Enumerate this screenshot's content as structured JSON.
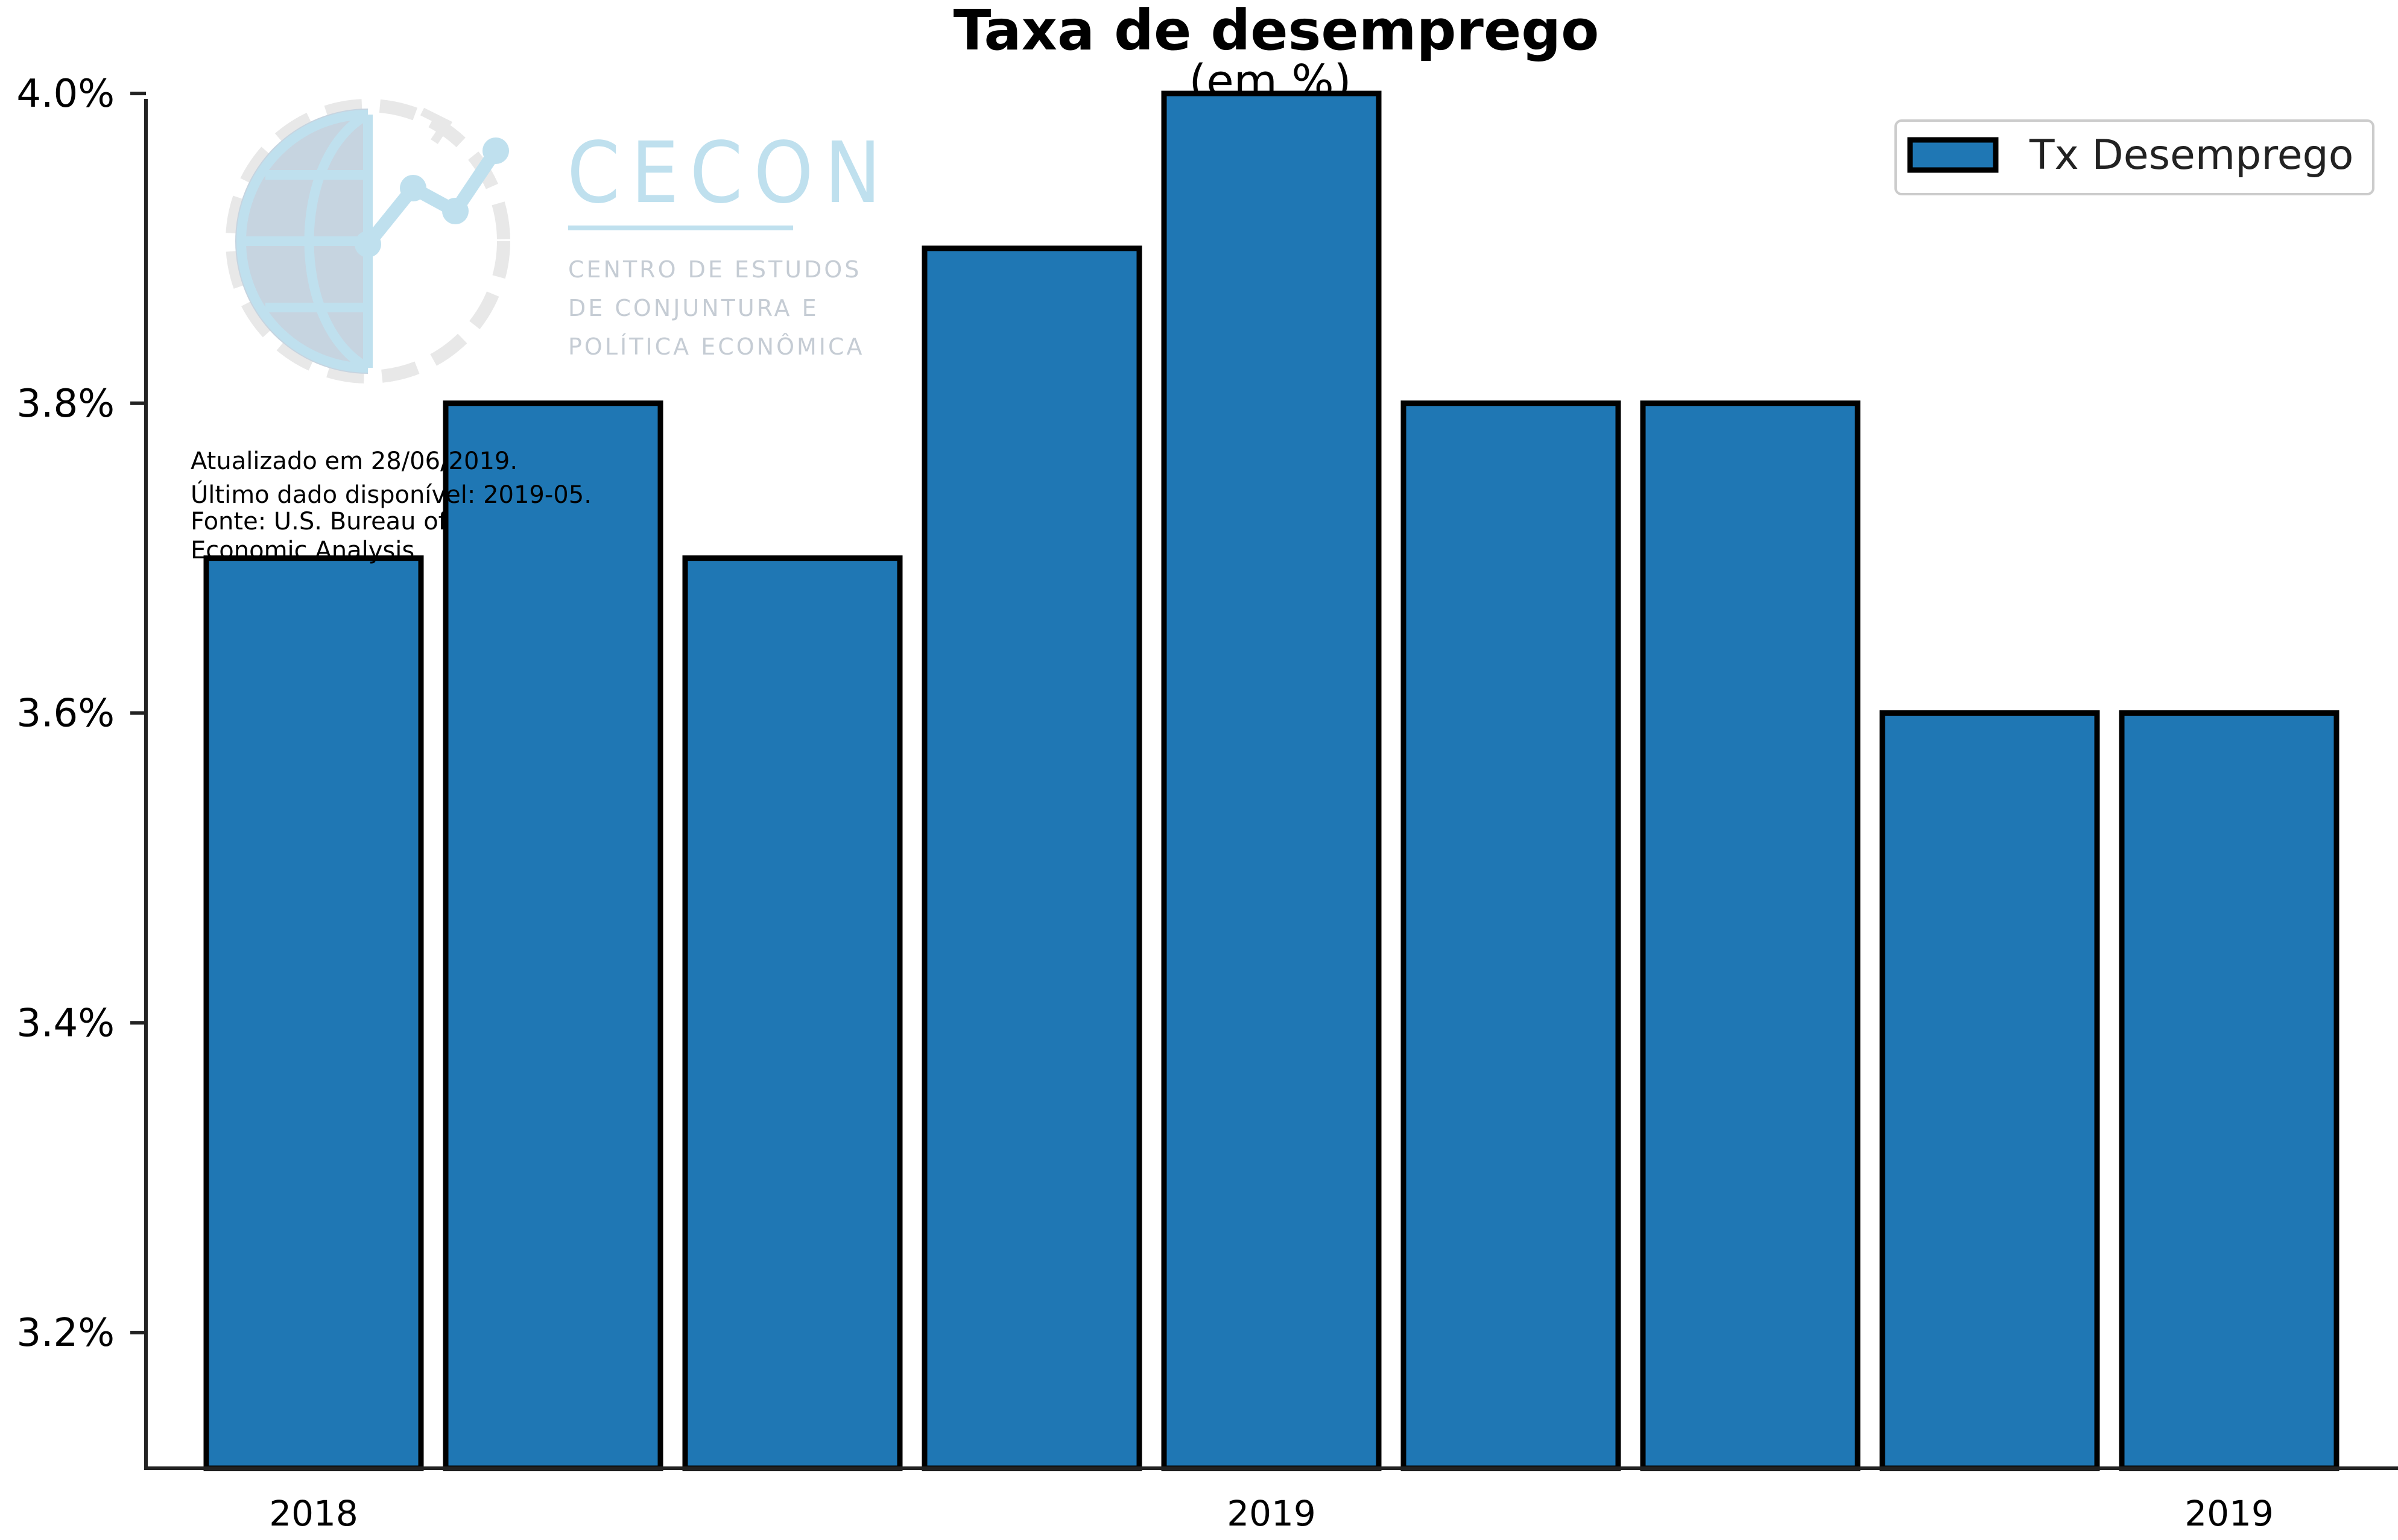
{
  "chart_data": {
    "type": "bar",
    "title": "Taxa de desemprego",
    "subtitle": "(em %)",
    "categories": [
      "2018",
      "",
      "",
      "",
      "2019",
      "",
      "",
      "",
      "2019"
    ],
    "series": [
      {
        "name": "Tx Desemprego",
        "color": "#1f77b4",
        "values": [
          3.7,
          3.8,
          3.7,
          3.9,
          4.0,
          3.8,
          3.8,
          3.6,
          3.6
        ]
      }
    ],
    "ylim": [
      3.1,
      4.1
    ],
    "yticks": [
      3.2,
      3.4,
      3.6,
      3.8,
      4.0
    ],
    "ytick_labels": [
      "3.2%",
      "3.4%",
      "3.6%",
      "3.8%",
      "4.0%"
    ],
    "xlabel": "",
    "ylabel": "",
    "grid": false,
    "legend_position": "top-right"
  },
  "notes": {
    "updated": "Atualizado em 28/06/2019.",
    "last_data": "Último dado disponível: 2019-05.",
    "source_line1": "Fonte: U.S. Bureau of",
    "source_line2": "Economic Analysis"
  },
  "logo": {
    "name": "CECON",
    "line1": "CENTRO DE ESTUDOS",
    "line2": "DE CONJUNTURA E",
    "line3": "POLÍTICA ECONÔMICA"
  }
}
